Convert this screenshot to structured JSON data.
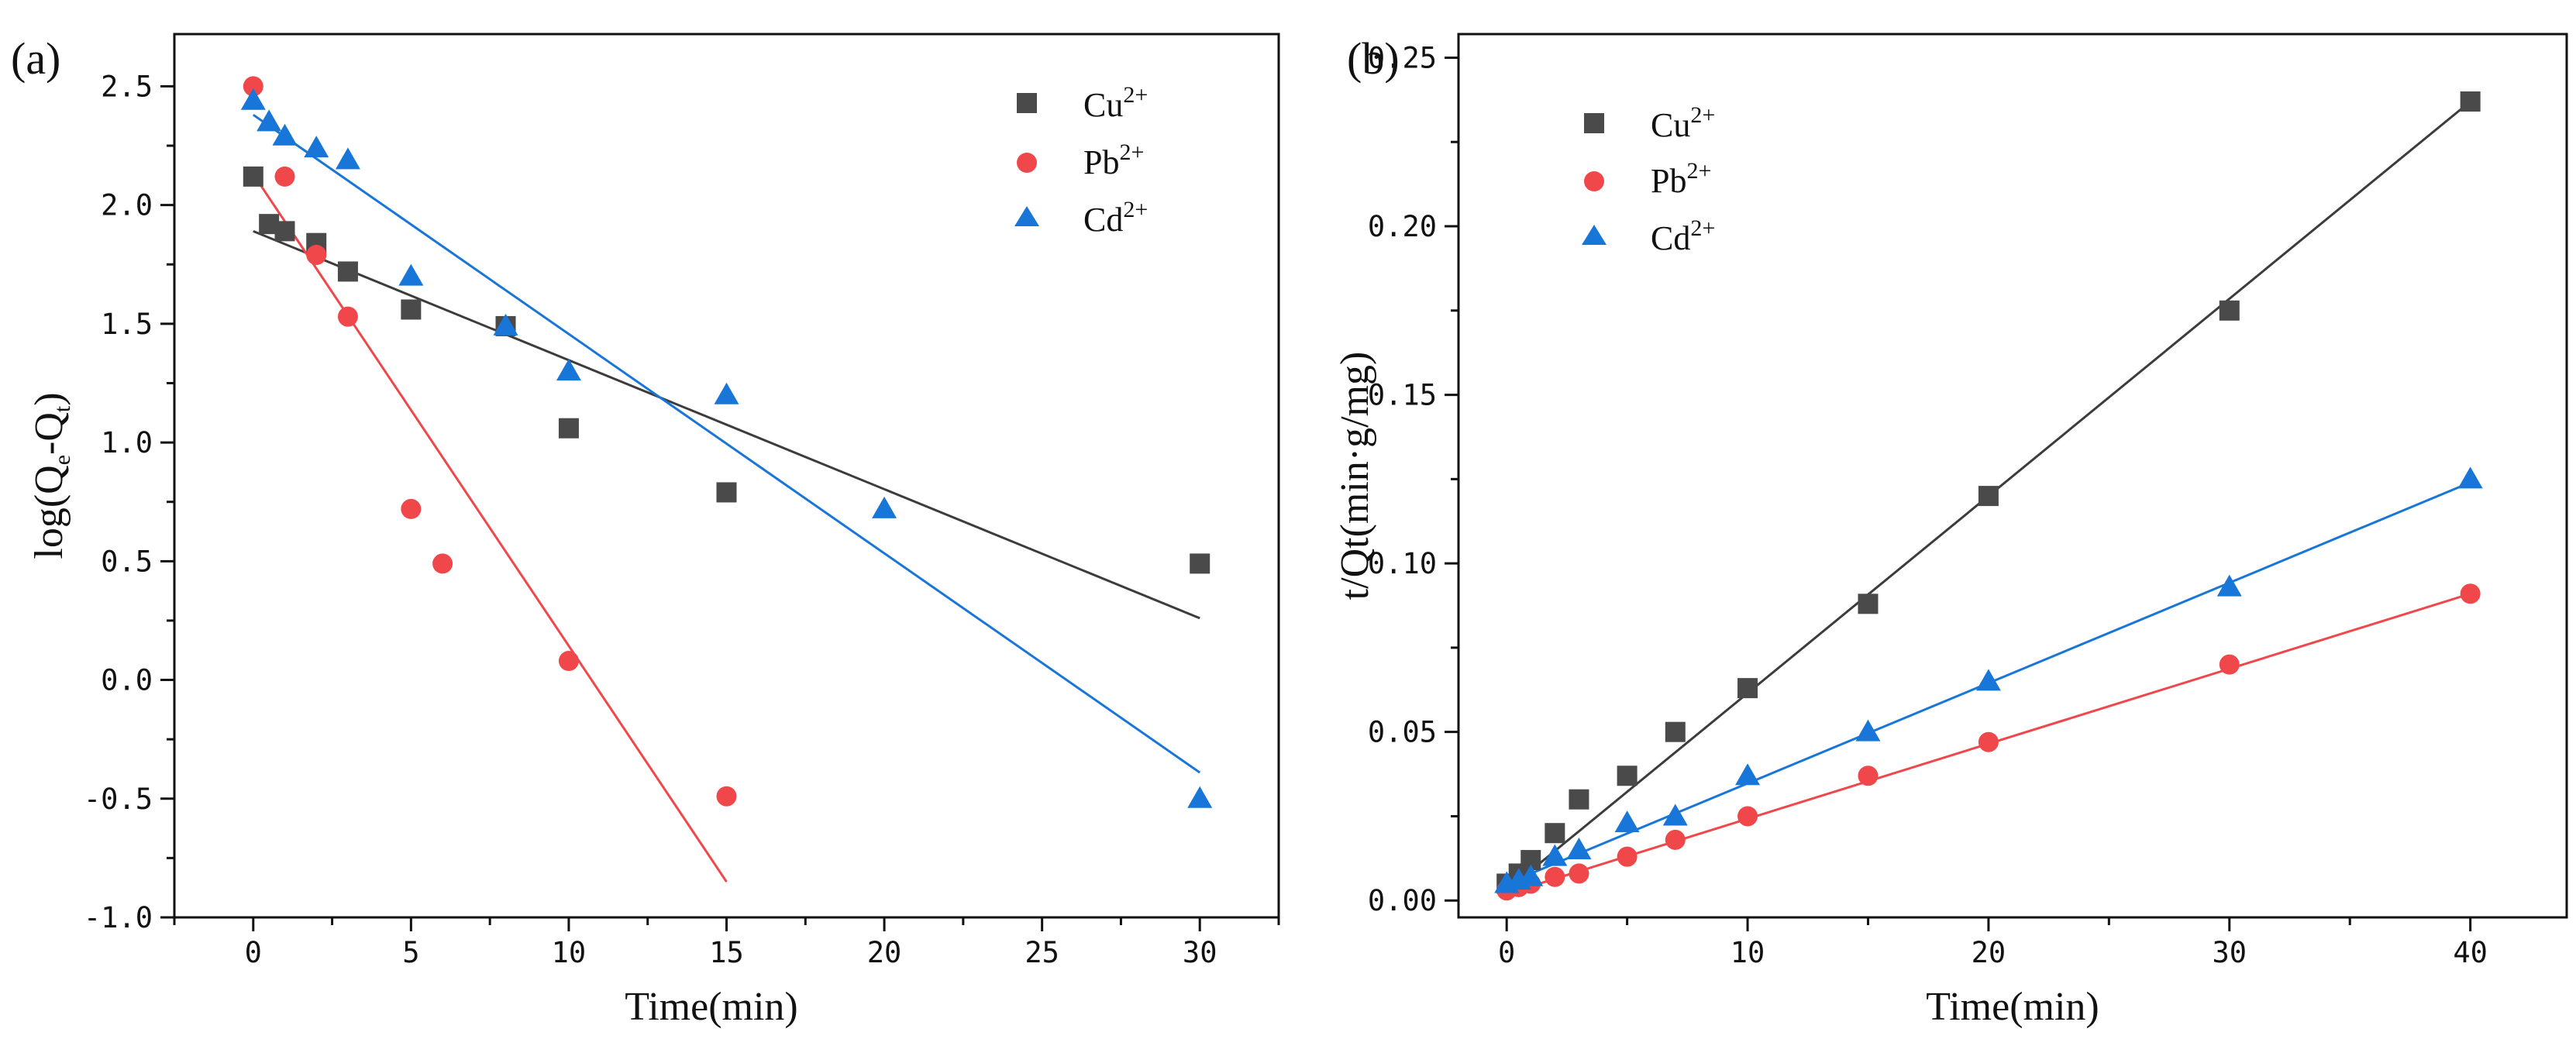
{
  "chart_data": [
    {
      "type": "scatter",
      "panel_label": "(a)",
      "title": "",
      "xlabel": "Time(min)",
      "ylabel_main": "log(Q",
      "ylabel_sub1": "e",
      "ylabel_mid": "-Q",
      "ylabel_sub2": "t",
      "ylabel_end": ")",
      "xlim": [
        -2.5,
        32.5
      ],
      "ylim": [
        -1.0,
        2.72
      ],
      "xticks": [
        0,
        5,
        10,
        15,
        20,
        25,
        30
      ],
      "yticks": [
        -1.0,
        -0.5,
        0.0,
        0.5,
        1.0,
        1.5,
        2.0,
        2.5
      ],
      "xtick_labels": [
        "0",
        "5",
        "10",
        "15",
        "20",
        "25",
        "30"
      ],
      "ytick_labels": [
        "-1.0",
        "-0.5",
        "0.0",
        "0.5",
        "1.0",
        "1.5",
        "2.0",
        "2.5"
      ],
      "legend_position": "top-right",
      "series": [
        {
          "name": "Cu",
          "sup": "2+",
          "marker": "square",
          "color": "#4a4a4a",
          "line_color": "#3c3c3c",
          "x": [
            0,
            0.5,
            1,
            2,
            3,
            5,
            8,
            10,
            15,
            30
          ],
          "y": [
            2.12,
            1.92,
            1.89,
            1.84,
            1.72,
            1.56,
            1.49,
            1.06,
            0.79,
            0.49
          ],
          "fit": {
            "x": [
              0,
              30
            ],
            "y": [
              1.89,
              0.26
            ]
          }
        },
        {
          "name": "Pb",
          "sup": "2+",
          "marker": "circle",
          "color": "#f0474b",
          "line_color": "#f0474b",
          "x": [
            0,
            1,
            2,
            3,
            5,
            6,
            10,
            15
          ],
          "y": [
            2.5,
            2.12,
            1.79,
            1.53,
            0.72,
            0.49,
            0.08,
            -0.49
          ],
          "fit": {
            "x": [
              0,
              15
            ],
            "y": [
              2.13,
              -0.85
            ]
          }
        },
        {
          "name": "Cd",
          "sup": "2+",
          "marker": "triangle",
          "color": "#1976d9",
          "line_color": "#1976d9",
          "x": [
            0,
            0.5,
            1,
            2,
            3,
            5,
            8,
            10,
            15,
            20,
            30
          ],
          "y": [
            2.44,
            2.35,
            2.29,
            2.24,
            2.19,
            1.7,
            1.49,
            1.3,
            1.2,
            0.72,
            -0.5
          ],
          "fit": {
            "x": [
              0,
              30
            ],
            "y": [
              2.38,
              -0.39
            ]
          }
        }
      ]
    },
    {
      "type": "scatter",
      "panel_label": "(b)",
      "title": "",
      "xlabel": "Time(min)",
      "ylabel": "t/Qt(min·g/mg)",
      "xlim": [
        -2,
        44
      ],
      "ylim": [
        -0.005,
        0.257
      ],
      "xticks": [
        0,
        10,
        20,
        30,
        40
      ],
      "yticks": [
        0.0,
        0.05,
        0.1,
        0.15,
        0.2,
        0.25
      ],
      "xtick_labels": [
        "0",
        "10",
        "20",
        "30",
        "40"
      ],
      "ytick_labels": [
        "0.00",
        "0.05",
        "0.10",
        "0.15",
        "0.20",
        "0.25"
      ],
      "legend_position": "top-left",
      "series": [
        {
          "name": "Cu",
          "sup": "2+",
          "marker": "square",
          "color": "#4a4a4a",
          "line_color": "#3c3c3c",
          "x": [
            0,
            0.5,
            1,
            2,
            3,
            5,
            7,
            10,
            15,
            20,
            30,
            40
          ],
          "y": [
            0.005,
            0.008,
            0.012,
            0.02,
            0.03,
            0.037,
            0.05,
            0.063,
            0.088,
            0.12,
            0.175,
            0.237
          ],
          "fit": {
            "x": [
              0,
              40
            ],
            "y": [
              0.003,
              0.237
            ]
          }
        },
        {
          "name": "Pb",
          "sup": "2+",
          "marker": "circle",
          "color": "#f0474b",
          "line_color": "#f0474b",
          "x": [
            0,
            0.5,
            1,
            2,
            3,
            5,
            7,
            10,
            15,
            20,
            30,
            40
          ],
          "y": [
            0.003,
            0.004,
            0.005,
            0.007,
            0.008,
            0.013,
            0.018,
            0.025,
            0.037,
            0.047,
            0.07,
            0.091
          ],
          "fit": {
            "x": [
              0,
              40
            ],
            "y": [
              0.002,
              0.091
            ]
          }
        },
        {
          "name": "Cd",
          "sup": "2+",
          "marker": "triangle",
          "color": "#1976d9",
          "line_color": "#1976d9",
          "x": [
            0,
            0.5,
            1,
            2,
            3,
            5,
            7,
            10,
            15,
            20,
            30,
            40
          ],
          "y": [
            0.005,
            0.006,
            0.007,
            0.013,
            0.015,
            0.023,
            0.025,
            0.037,
            0.05,
            0.065,
            0.093,
            0.125
          ],
          "fit": {
            "x": [
              0,
              40
            ],
            "y": [
              0.005,
              0.124
            ]
          }
        }
      ]
    }
  ]
}
